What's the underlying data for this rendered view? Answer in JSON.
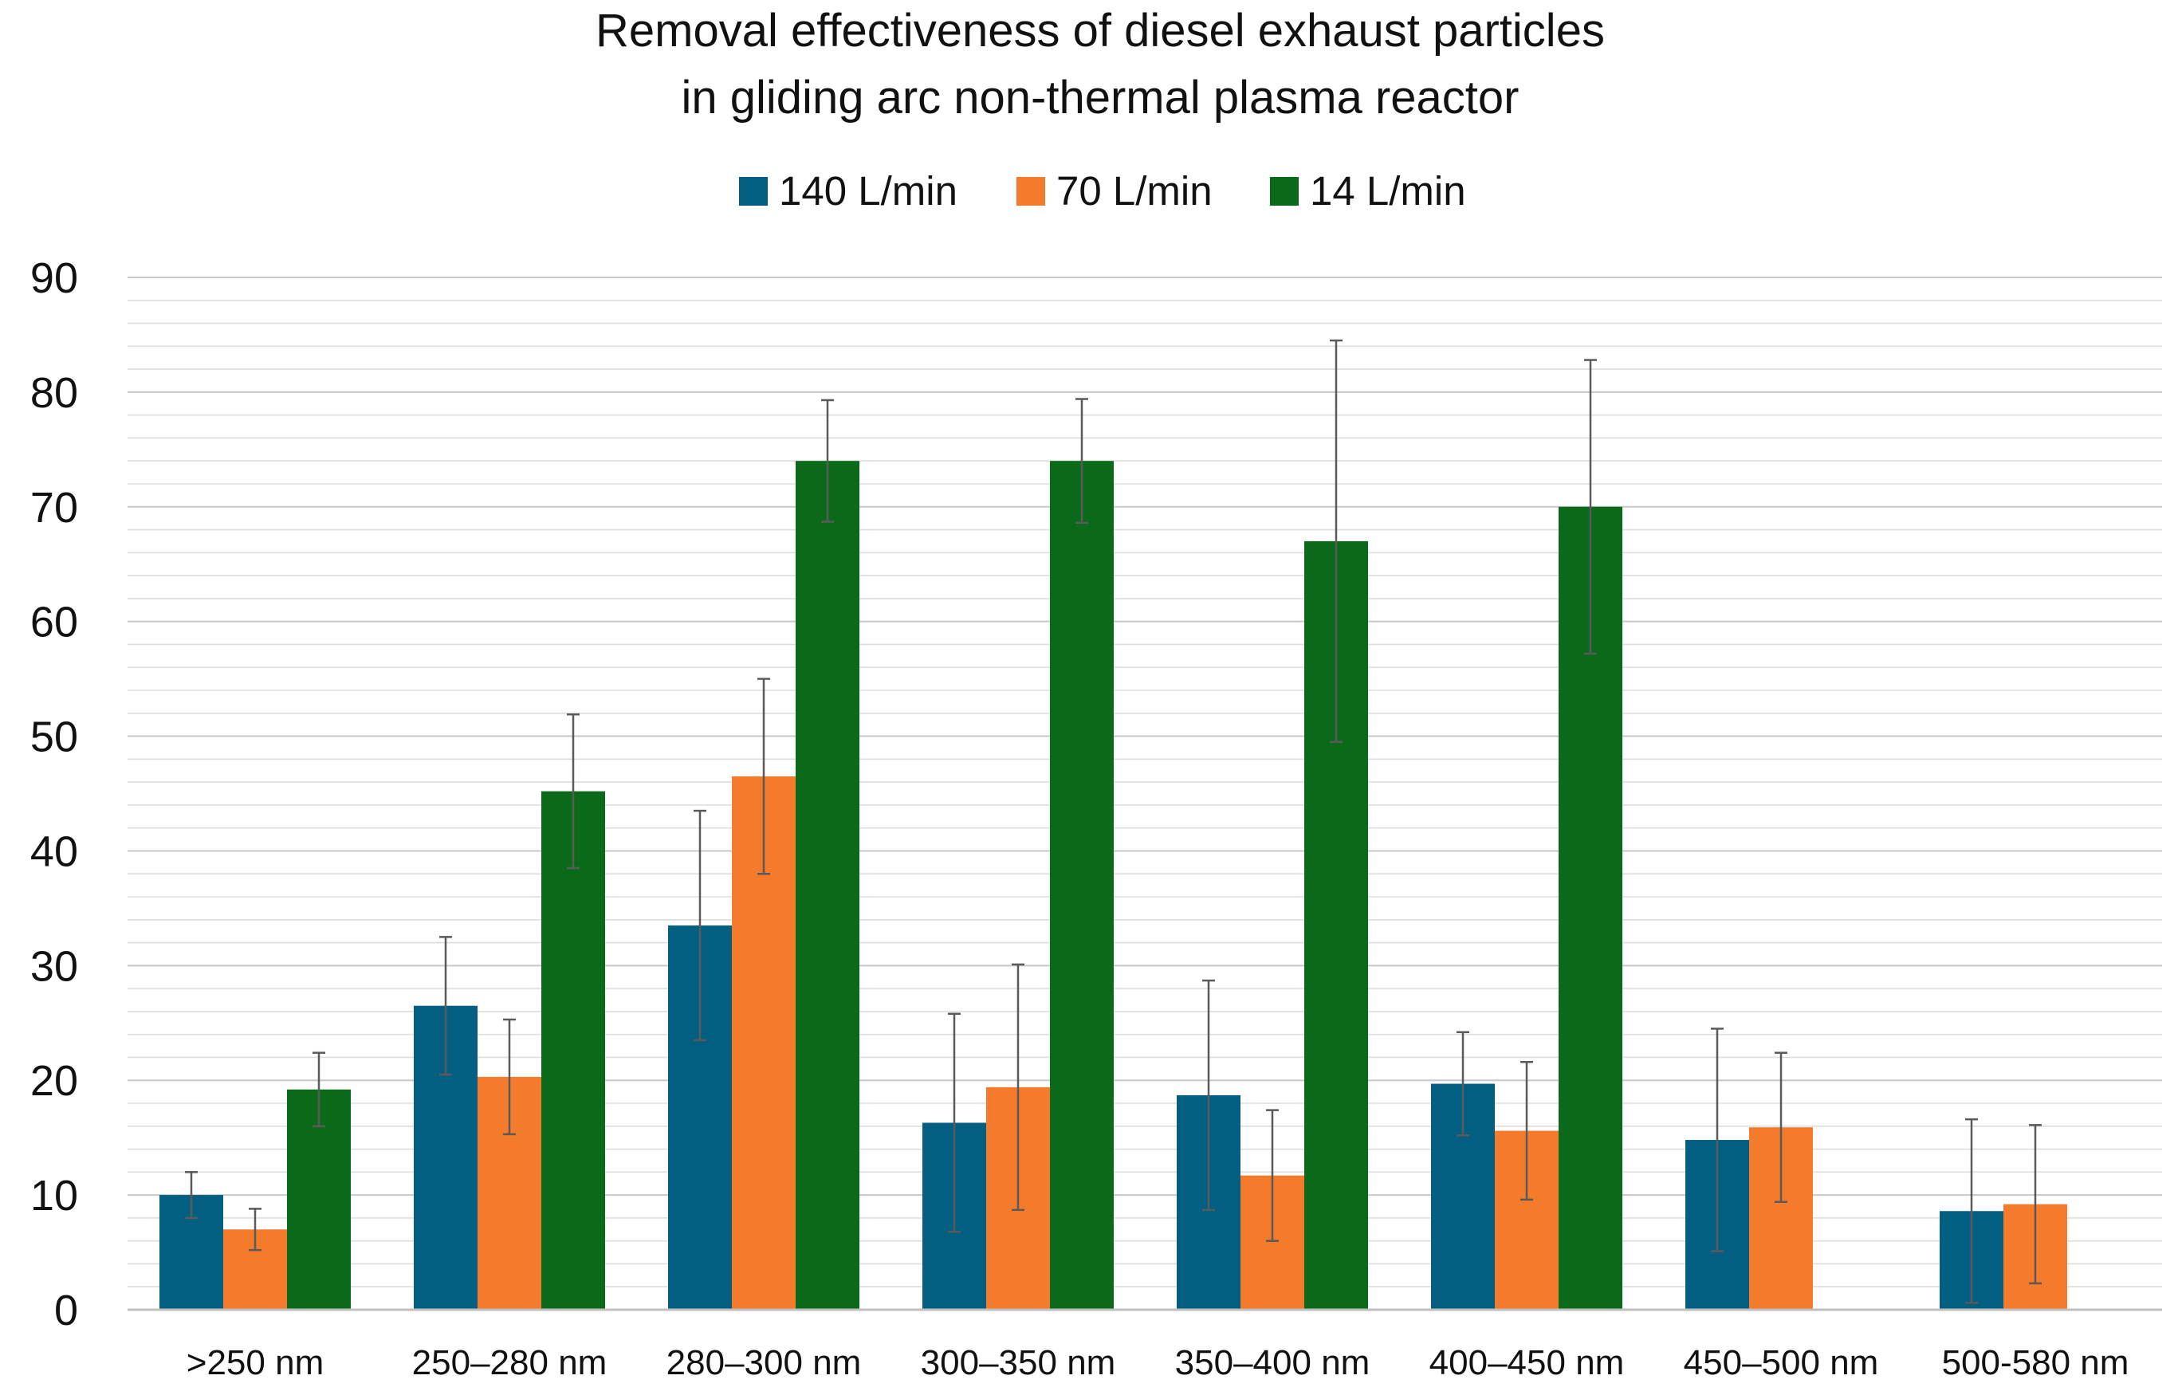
{
  "chart_data": {
    "type": "bar",
    "title": "Removal effectiveness of diesel exhaust particles\nin gliding arc non-thermal plasma reactor",
    "title_lines": [
      "Removal effectiveness of diesel exhaust particles",
      "in gliding arc non-thermal plasma reactor"
    ],
    "xlabel": "",
    "ylabel": "",
    "ylim": [
      0,
      90
    ],
    "y_major_ticks": [
      0,
      10,
      20,
      30,
      40,
      50,
      60,
      70,
      80,
      90
    ],
    "y_minor_step": 2,
    "grid": true,
    "legend_position": "top-center",
    "categories": [
      ">250 nm",
      "250–280 nm",
      "280–300 nm",
      "300–350 nm",
      "350–400 nm",
      "400–450 nm",
      "450–500 nm",
      "500-580 nm"
    ],
    "series": [
      {
        "name": "140 L/min",
        "color": "#035f82",
        "values": [
          10,
          26.5,
          33.5,
          16.3,
          18.7,
          19.7,
          14.8,
          8.6
        ],
        "errors": [
          2,
          6,
          10,
          9.5,
          10,
          4.5,
          9.7,
          8
        ]
      },
      {
        "name": "70 L/min",
        "color": "#f47a2c",
        "values": [
          7,
          20.3,
          46.5,
          19.4,
          11.7,
          15.6,
          15.9,
          9.2
        ],
        "errors": [
          1.8,
          5,
          8.5,
          10.7,
          5.7,
          6,
          6.5,
          6.9
        ]
      },
      {
        "name": "14 L/min",
        "color": "#0b6a1a",
        "values": [
          19.2,
          45.2,
          74,
          74,
          67,
          70,
          null,
          null
        ],
        "errors": [
          3.2,
          6.7,
          5.3,
          5.4,
          17.5,
          12.8,
          null,
          null
        ]
      }
    ]
  }
}
